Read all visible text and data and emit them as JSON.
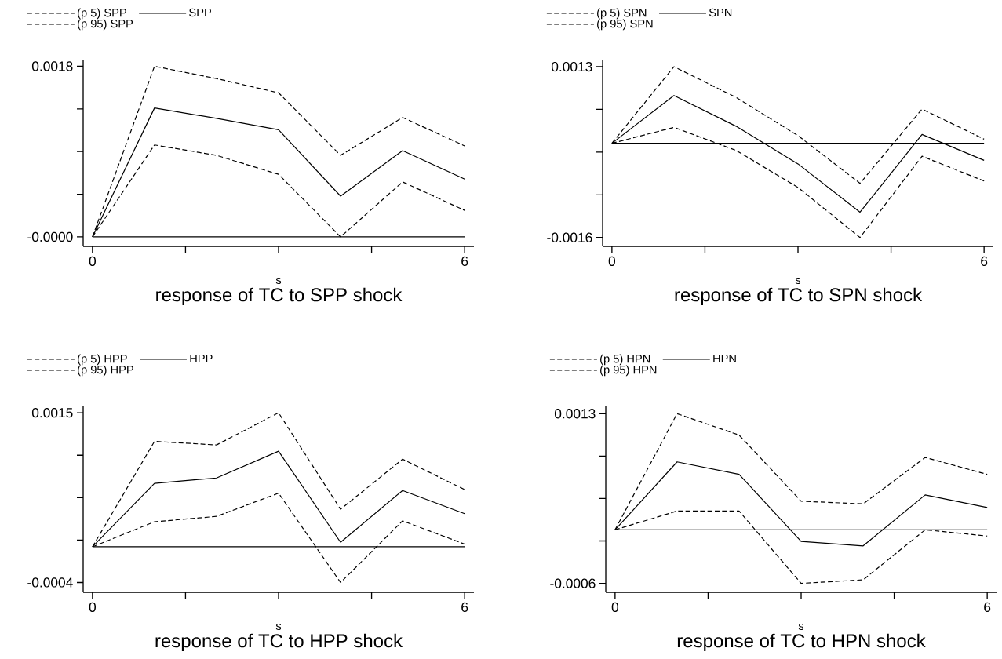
{
  "chart_data": [
    {
      "type": "line",
      "title": "response of TC to SPP shock",
      "xlabel": "s",
      "x": [
        0,
        1,
        2,
        3,
        4,
        5,
        6
      ],
      "xlim": [
        -0.15,
        6.15
      ],
      "ylim": [
        -0.0001,
        0.00187
      ],
      "xticks": [
        0,
        {
          "value": 1.5,
          "label": null
        },
        {
          "value": 3,
          "label": null
        },
        {
          "value": 4.5,
          "label": null
        },
        6
      ],
      "yticks": [
        {
          "value": 0,
          "label": "-0.0000"
        },
        {
          "value": 0.00045,
          "label": null
        },
        {
          "value": 0.0009,
          "label": null
        },
        {
          "value": 0.00135,
          "label": null
        },
        0.0018
      ],
      "legend": "top left",
      "ref_lines": [
        {
          "axis": "y",
          "value": 0,
          "color": "#000000"
        }
      ],
      "series": [
        {
          "name": "(p 5) SPP",
          "color": "#000000",
          "line_style": "dashed",
          "values": [
            0,
            0.00097,
            0.00086,
            0.00066,
            0.0,
            0.00058,
            0.00028
          ]
        },
        {
          "name": "SPP",
          "color": "#000000",
          "line_style": "solid",
          "values": [
            0,
            0.00136,
            0.00125,
            0.00113,
            0.00043,
            0.00091,
            0.00061
          ]
        },
        {
          "name": "(p 95) SPP",
          "color": "#000000",
          "line_style": "dashed",
          "values": [
            0,
            0.0018,
            0.00167,
            0.00152,
            0.00086,
            0.00126,
            0.00096
          ]
        }
      ]
    },
    {
      "type": "line",
      "title": "response of TC to SPN shock",
      "xlabel": "s",
      "x": [
        0,
        1,
        2,
        3,
        4,
        5,
        6
      ],
      "xlim": [
        -0.15,
        6.15
      ],
      "ylim": [
        -0.00175,
        0.00142
      ],
      "xticks": [
        0,
        {
          "value": 1.5,
          "label": null
        },
        {
          "value": 3,
          "label": null
        },
        {
          "value": 4.5,
          "label": null
        },
        6
      ],
      "yticks": [
        -0.0016,
        {
          "value": -0.000875,
          "label": null
        },
        {
          "value": -0.00015,
          "label": null
        },
        {
          "value": 0.000575,
          "label": null
        },
        0.0013
      ],
      "legend": "top left",
      "ref_lines": [
        {
          "axis": "y",
          "value": 0,
          "color": "#000000"
        }
      ],
      "series": [
        {
          "name": "(p 5) SPN",
          "color": "#000000",
          "line_style": "dashed",
          "values": [
            0,
            0.00027,
            -0.00012,
            -0.00075,
            -0.0016,
            -0.00022,
            -0.00064
          ]
        },
        {
          "name": "SPN",
          "color": "#000000",
          "line_style": "solid",
          "values": [
            0,
            0.00081,
            0.00029,
            -0.00035,
            -0.00117,
            0.00015,
            -0.00029
          ]
        },
        {
          "name": "(p 95) SPN",
          "color": "#000000",
          "line_style": "dashed",
          "values": [
            0,
            0.0013,
            0.00078,
            0.00013,
            -0.00068,
            0.00058,
            7e-05
          ]
        }
      ]
    },
    {
      "type": "line",
      "title": "response of TC to HPP shock",
      "xlabel": "s",
      "x": [
        0,
        1,
        2,
        3,
        4,
        5,
        6
      ],
      "xlim": [
        -0.15,
        6.15
      ],
      "ylim": [
        -0.00051,
        0.00158
      ],
      "xticks": [
        0,
        {
          "value": 1.5,
          "label": null
        },
        {
          "value": 3,
          "label": null
        },
        {
          "value": 4.5,
          "label": null
        },
        6
      ],
      "yticks": [
        -0.0004,
        {
          "value": 7.5e-05,
          "label": null
        },
        {
          "value": 0.00055,
          "label": null
        },
        {
          "value": 0.001025,
          "label": null
        },
        0.0015
      ],
      "legend": "top left",
      "ref_lines": [
        {
          "axis": "y",
          "value": 0,
          "color": "#000000"
        }
      ],
      "series": [
        {
          "name": "(p 5) HPP",
          "color": "#000000",
          "line_style": "dashed",
          "values": [
            0,
            0.00028,
            0.00034,
            0.0006,
            -0.0004,
            0.00029,
            3e-05
          ]
        },
        {
          "name": "HPP",
          "color": "#000000",
          "line_style": "solid",
          "values": [
            0,
            0.00071,
            0.00077,
            0.00107,
            5e-05,
            0.00063,
            0.00037
          ]
        },
        {
          "name": "(p 95) HPP",
          "color": "#000000",
          "line_style": "dashed",
          "values": [
            0,
            0.00118,
            0.00114,
            0.0015,
            0.00042,
            0.00098,
            0.00064
          ]
        }
      ]
    },
    {
      "type": "line",
      "title": "response of TC to HPN shock",
      "xlabel": "s",
      "x": [
        0,
        1,
        2,
        3,
        4,
        5,
        6
      ],
      "xlim": [
        -0.15,
        6.15
      ],
      "ylim": [
        -0.0007,
        0.00139
      ],
      "xticks": [
        0,
        {
          "value": 1.5,
          "label": null
        },
        {
          "value": 3,
          "label": null
        },
        {
          "value": 4.5,
          "label": null
        },
        6
      ],
      "yticks": [
        -0.0006,
        {
          "value": -0.000125,
          "label": null
        },
        {
          "value": 0.00035,
          "label": null
        },
        {
          "value": 0.000825,
          "label": null
        },
        0.0013
      ],
      "legend": "top left",
      "ref_lines": [
        {
          "axis": "y",
          "value": 0,
          "color": "#000000"
        }
      ],
      "series": [
        {
          "name": "(p 5) HPN",
          "color": "#000000",
          "line_style": "dashed",
          "values": [
            0,
            0.00021,
            0.00021,
            -0.0006,
            -0.00056,
            0.0,
            -7e-05
          ]
        },
        {
          "name": "HPN",
          "color": "#000000",
          "line_style": "solid",
          "values": [
            0,
            0.00076,
            0.00062,
            -0.00013,
            -0.00018,
            0.00039,
            0.00025
          ]
        },
        {
          "name": "(p 95) HPN",
          "color": "#000000",
          "line_style": "dashed",
          "values": [
            0,
            0.0013,
            0.00106,
            0.00032,
            0.00029,
            0.00081,
            0.00062
          ]
        }
      ]
    }
  ]
}
